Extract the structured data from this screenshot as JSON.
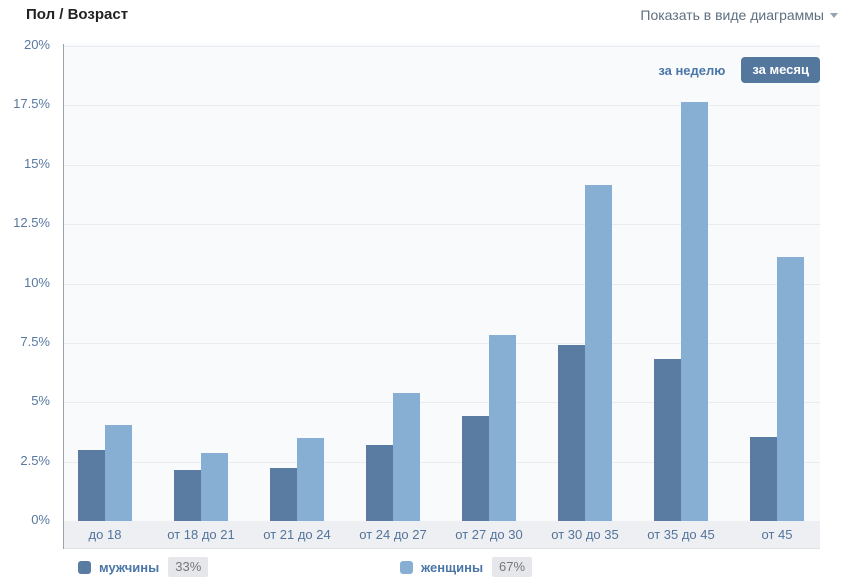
{
  "header": {
    "title": "Пол / Возраст",
    "view_toggle": "Показать в виде диаграммы"
  },
  "toolbar": {
    "week": "за неделю",
    "month": "за месяц",
    "active": "за месяц"
  },
  "colors": {
    "male_bar": "#5b7ca2",
    "female_bar": "#86afd3",
    "accent_link": "#4a76a8",
    "active_button_bg": "#54779e"
  },
  "chart_data": {
    "type": "bar",
    "title": "Пол / Возраст",
    "categories": [
      "до 18",
      "от 18 до 21",
      "от 21 до 24",
      "от 24 до 27",
      "от 27 до 30",
      "от 30 до 35",
      "от 35 до 45",
      "от 45"
    ],
    "series": [
      {
        "name": "мужчины",
        "total_share": "33%",
        "color_key": "male_bar",
        "values": [
          3.0,
          2.15,
          2.25,
          3.2,
          4.4,
          7.4,
          6.8,
          3.55
        ]
      },
      {
        "name": "женщины",
        "total_share": "67%",
        "color_key": "female_bar",
        "values": [
          4.05,
          2.85,
          3.5,
          5.4,
          7.85,
          14.15,
          17.65,
          11.1
        ]
      }
    ],
    "ylabel": "",
    "xlabel": "",
    "ylim": [
      0,
      20
    ],
    "ytick_step": 2.5,
    "ytick_labels": [
      "0%",
      "2.5%",
      "5%",
      "7.5%",
      "10%",
      "12.5%",
      "15%",
      "17.5%",
      "20%"
    ],
    "grid": true,
    "legend_position": "bottom"
  }
}
